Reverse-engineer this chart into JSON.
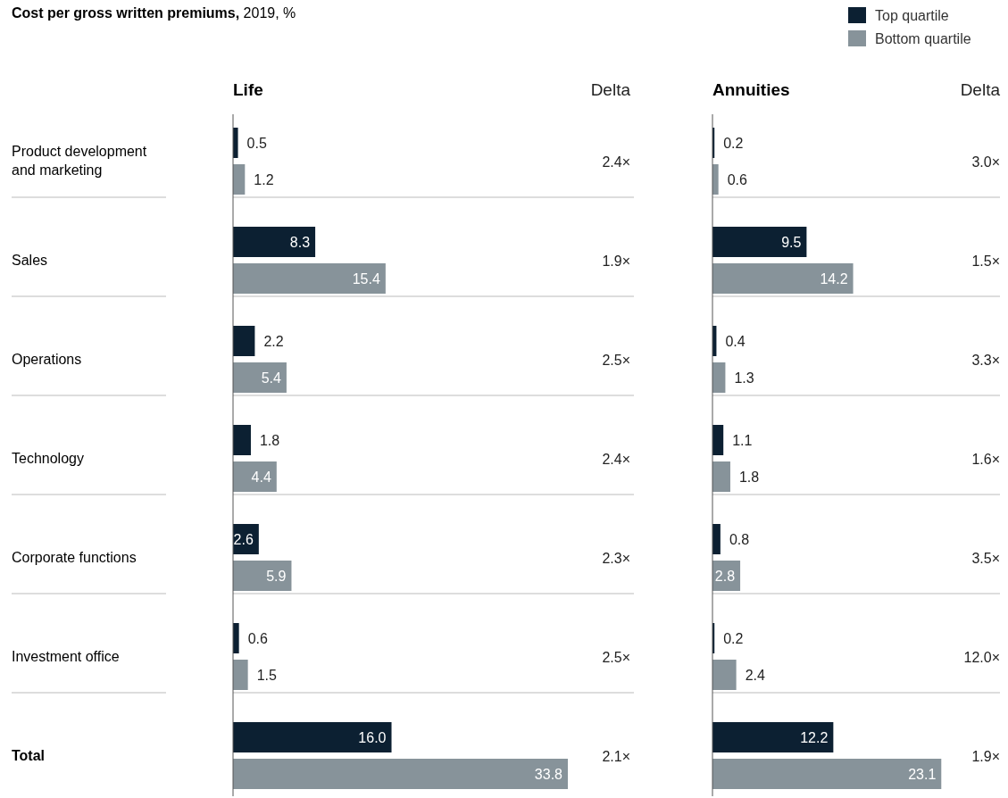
{
  "chart_data": [
    {
      "type": "bar",
      "orientation": "horizontal",
      "title": "Cost per gross written premiums, 2019, %",
      "subtitle": "Life",
      "categories": [
        "Product development and marketing",
        "Sales",
        "Operations",
        "Technology",
        "Corporate functions",
        "Investment office",
        "Total"
      ],
      "series": [
        {
          "color": "#0c2032",
          "values": [
            0.5,
            8.3,
            2.2,
            1.8,
            2.6,
            0.6,
            16.0
          ],
          "value_labels": [
            "0.5",
            "8.3",
            "2.2",
            "1.8",
            "2.6",
            "0.6",
            "16.0"
          ]
        },
        {
          "color": "#87939a",
          "values": [
            1.2,
            15.4,
            5.4,
            4.4,
            5.9,
            1.5,
            33.8
          ],
          "value_labels": [
            "1.2",
            "15.4",
            "5.4",
            "4.4",
            "5.9",
            "1.5",
            "33.8"
          ]
        }
      ],
      "annotations": [
        "Delta",
        "2.4×",
        "1.9×",
        "2.5×",
        "2.4×",
        "2.3×",
        "2.5×",
        "2.1×"
      ]
    },
    {
      "type": "bar",
      "orientation": "horizontal",
      "subtitle": "Annuities",
      "categories": [
        null,
        null,
        null,
        null,
        null,
        null,
        null
      ],
      "series": [
        {
          "name": "Top quartile",
          "color": "#0c2032",
          "values": [
            0.2,
            9.5,
            0.4,
            1.1,
            0.8,
            0.2,
            12.2
          ],
          "value_labels": [
            "0.2",
            "9.5",
            "0.4",
            "1.1",
            "0.8",
            "0.2",
            "12.2"
          ]
        },
        {
          "name": "Bottom quartile",
          "color": "#87939a",
          "values": [
            0.6,
            14.2,
            1.3,
            1.8,
            2.8,
            2.4,
            23.1
          ],
          "value_labels": [
            "0.6",
            "14.2",
            "1.3",
            "1.8",
            "2.8",
            "2.4",
            "23.1"
          ]
        }
      ],
      "legend": "top right",
      "annotations": [
        "Delta",
        "3.0×",
        "1.5×",
        "3.3×",
        "1.6×",
        "3.5×",
        "12.0×",
        "1.9×"
      ]
    }
  ]
}
